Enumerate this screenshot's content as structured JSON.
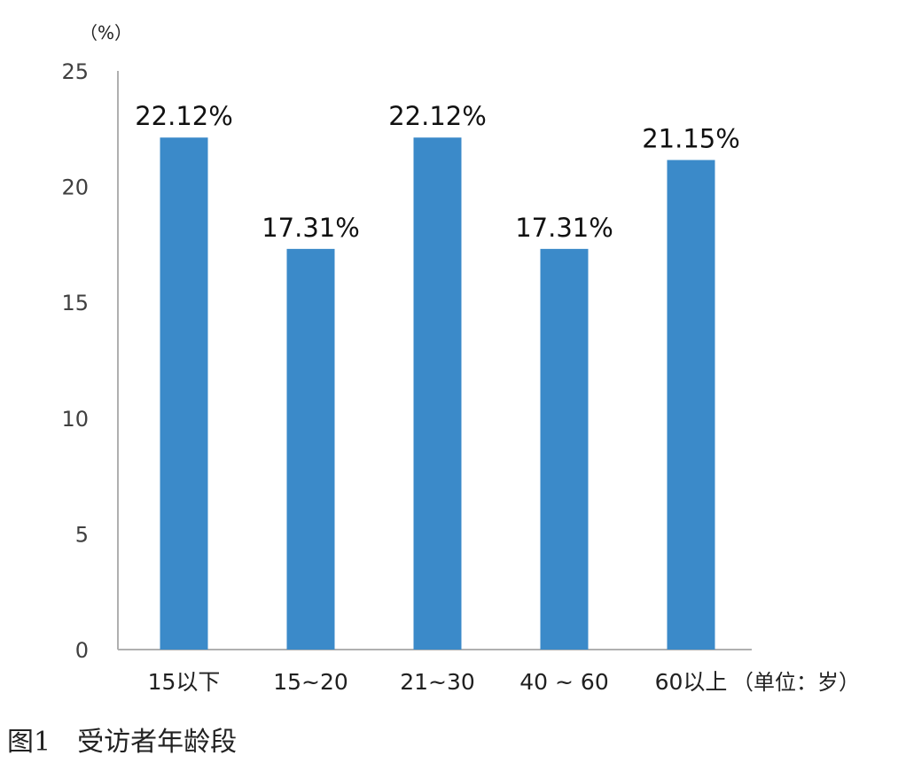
{
  "chart_data": {
    "type": "bar",
    "categories": [
      "15以下",
      "15~20",
      "21~30",
      "40 ~ 60",
      "60以上"
    ],
    "values": [
      22.12,
      17.31,
      22.12,
      17.31,
      21.15
    ],
    "data_labels": [
      "22.12%",
      "17.31%",
      "22.12%",
      "17.31%",
      "21.15%"
    ],
    "y_unit": "（%）",
    "x_unit": "（单位：岁）",
    "ylim": [
      0,
      25
    ],
    "yticks": [
      0,
      5,
      10,
      15,
      20,
      25
    ],
    "bar_color": "#3B8AC9",
    "grid": false
  },
  "caption": "图1　受访者年龄段"
}
